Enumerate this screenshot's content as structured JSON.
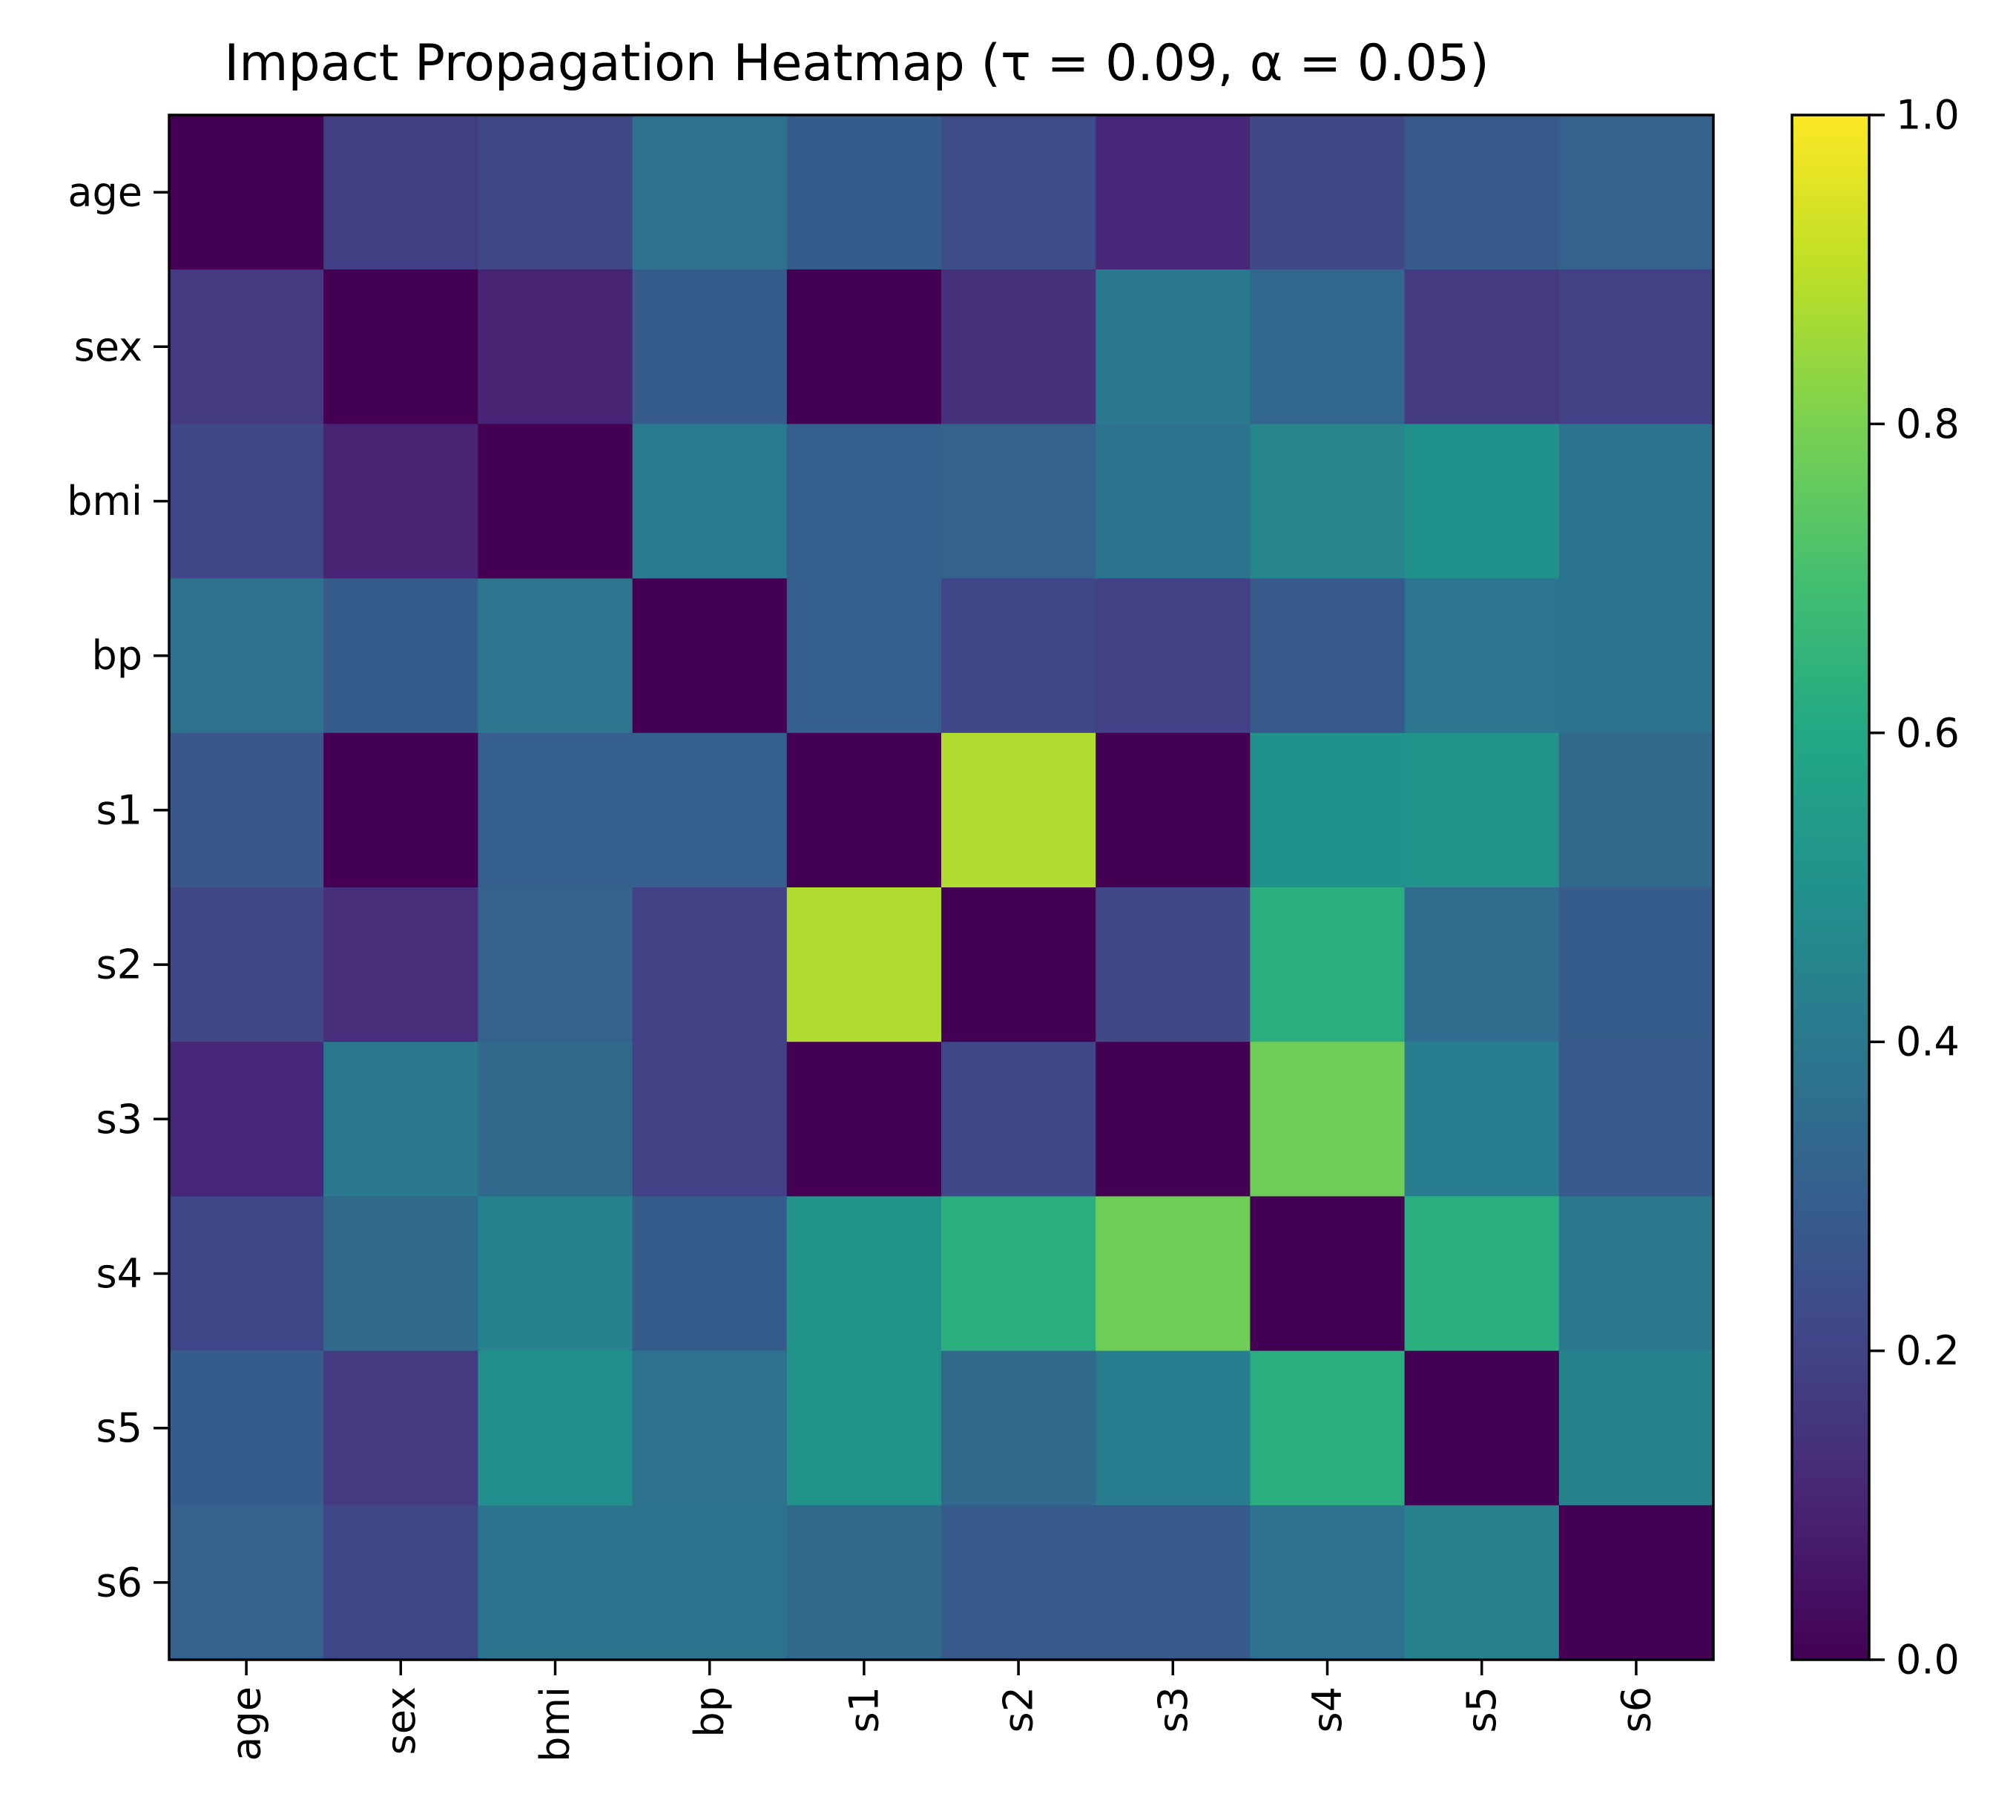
{
  "chart_data": {
    "type": "heatmap",
    "title": "Impact Propagation Heatmap (τ = 0.09, α = 0.05)",
    "xlabel": "",
    "ylabel": "",
    "x_categories": [
      "age",
      "sex",
      "bmi",
      "bp",
      "s1",
      "s2",
      "s3",
      "s4",
      "s5",
      "s6"
    ],
    "y_categories": [
      "age",
      "sex",
      "bmi",
      "bp",
      "s1",
      "s2",
      "s3",
      "s4",
      "s5",
      "s6"
    ],
    "colormap": "viridis",
    "value_range": [
      0,
      1
    ],
    "grid": false,
    "colorbar": {
      "placement": "right",
      "range": [
        0,
        1
      ],
      "ticks": [
        0.0,
        0.2,
        0.4,
        0.6,
        0.8,
        1.0
      ],
      "tick_labels": [
        "0.0",
        "0.2",
        "0.4",
        "0.6",
        "0.8",
        "1.0"
      ]
    },
    "values": [
      [
        0.0,
        0.18,
        0.21,
        0.37,
        0.29,
        0.23,
        0.11,
        0.22,
        0.28,
        0.31
      ],
      [
        0.17,
        0.0,
        0.1,
        0.29,
        0.0,
        0.14,
        0.4,
        0.33,
        0.17,
        0.19
      ],
      [
        0.21,
        0.1,
        0.0,
        0.41,
        0.3,
        0.31,
        0.38,
        0.45,
        0.5,
        0.38
      ],
      [
        0.37,
        0.29,
        0.39,
        0.0,
        0.3,
        0.21,
        0.19,
        0.28,
        0.39,
        0.38
      ],
      [
        0.27,
        0.0,
        0.3,
        0.3,
        0.0,
        0.88,
        0.0,
        0.5,
        0.51,
        0.34
      ],
      [
        0.22,
        0.13,
        0.31,
        0.19,
        0.88,
        0.0,
        0.22,
        0.63,
        0.35,
        0.29
      ],
      [
        0.11,
        0.4,
        0.34,
        0.19,
        0.0,
        0.21,
        0.0,
        0.78,
        0.42,
        0.28
      ],
      [
        0.21,
        0.34,
        0.44,
        0.29,
        0.51,
        0.63,
        0.78,
        0.0,
        0.63,
        0.4
      ],
      [
        0.29,
        0.17,
        0.49,
        0.37,
        0.51,
        0.34,
        0.42,
        0.63,
        0.0,
        0.44
      ],
      [
        0.31,
        0.21,
        0.38,
        0.38,
        0.34,
        0.28,
        0.28,
        0.37,
        0.43,
        0.0
      ]
    ]
  }
}
